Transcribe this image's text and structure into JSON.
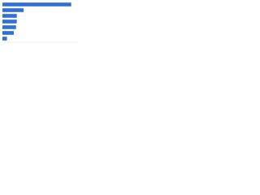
{
  "chart_data": {
    "type": "bar",
    "orientation": "horizontal",
    "categories": [
      null,
      null,
      null,
      null,
      null,
      null,
      null
    ],
    "values": [
      91,
      28,
      19,
      19,
      18,
      15,
      6
    ],
    "color": "#2f6fd6",
    "xlim": [
      0,
      100
    ]
  }
}
